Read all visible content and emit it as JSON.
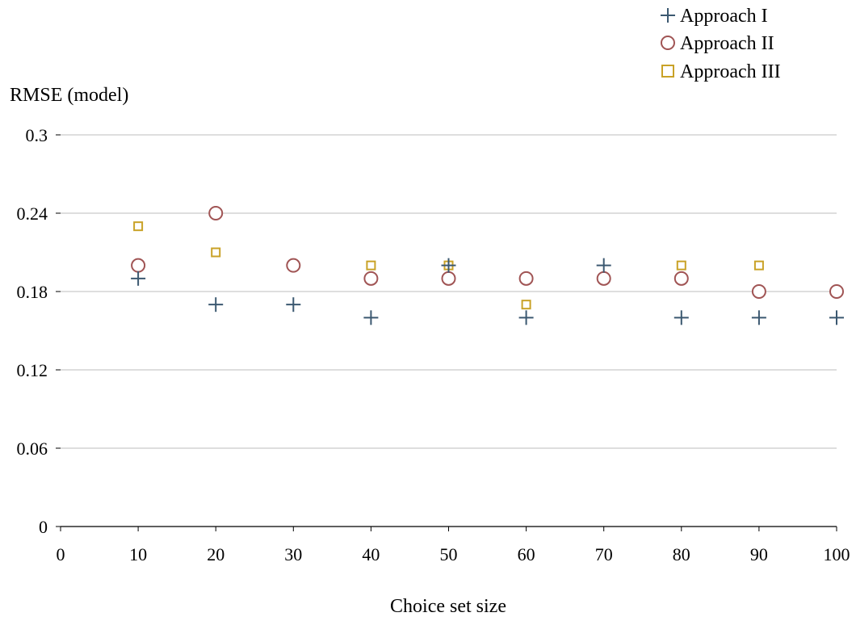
{
  "chart_data": {
    "type": "scatter",
    "title": "",
    "xlabel": "Choice set size",
    "ylabel": "RMSE (model)",
    "xlim": [
      0,
      100
    ],
    "ylim": [
      0,
      0.3
    ],
    "xticks": [
      "0",
      "10",
      "20",
      "30",
      "40",
      "50",
      "60",
      "70",
      "80",
      "90",
      "100"
    ],
    "yticks": [
      "0",
      "0.06",
      "0.12",
      "0.18",
      "0.24",
      "0.3"
    ],
    "grid": "horizontal",
    "legend_position": "top-right",
    "series": [
      {
        "name": "Approach I",
        "marker": "plus",
        "color": "#3b5870",
        "x": [
          10,
          20,
          30,
          40,
          50,
          60,
          70,
          80,
          90,
          100
        ],
        "y": [
          0.19,
          0.17,
          0.17,
          0.16,
          0.2,
          0.16,
          0.2,
          0.16,
          0.16,
          0.16
        ]
      },
      {
        "name": "Approach II",
        "marker": "circle",
        "color": "#a05454",
        "x": [
          10,
          20,
          30,
          40,
          50,
          60,
          70,
          80,
          90,
          100
        ],
        "y": [
          0.2,
          0.24,
          0.2,
          0.19,
          0.19,
          0.19,
          0.19,
          0.19,
          0.18,
          0.18
        ]
      },
      {
        "name": "Approach III",
        "marker": "square",
        "color": "#c9a227",
        "x": [
          10,
          20,
          40,
          50,
          60,
          80,
          90
        ],
        "y": [
          0.23,
          0.21,
          0.2,
          0.2,
          0.17,
          0.2,
          0.2
        ]
      }
    ]
  }
}
